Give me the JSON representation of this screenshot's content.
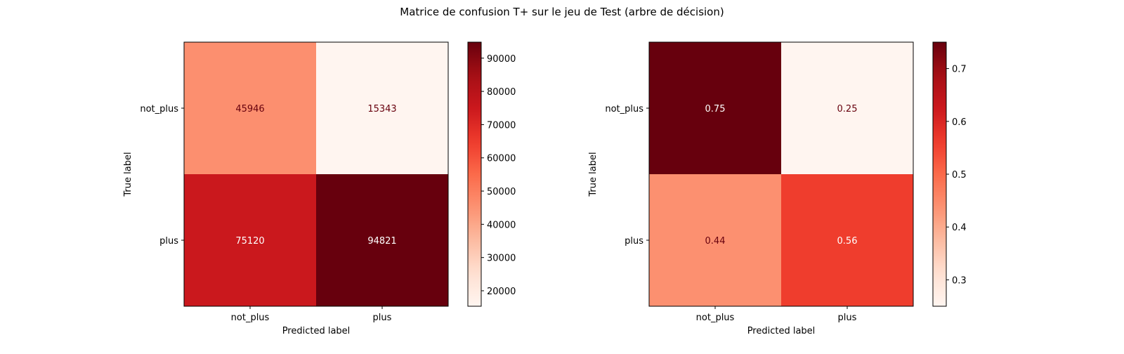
{
  "figure": {
    "suptitle": "Matrice de confusion T+ sur le jeu de Test (arbre de décision)"
  },
  "chart_data": [
    {
      "type": "heatmap",
      "colormap": "Reds",
      "xlabel": "Predicted label",
      "ylabel": "True label",
      "x_categories": [
        "not_plus",
        "plus"
      ],
      "y_categories": [
        "not_plus",
        "plus"
      ],
      "values": [
        [
          45946,
          15343
        ],
        [
          75120,
          94821
        ]
      ],
      "labels": [
        [
          "45946",
          "15343"
        ],
        [
          "75120",
          "94821"
        ]
      ],
      "colorbar": {
        "vmin": 15343,
        "vmax": 94821,
        "ticks": [
          20000,
          30000,
          40000,
          50000,
          60000,
          70000,
          80000,
          90000
        ],
        "tick_labels": [
          "20000",
          "30000",
          "40000",
          "50000",
          "60000",
          "70000",
          "80000",
          "90000"
        ]
      }
    },
    {
      "type": "heatmap",
      "colormap": "Reds",
      "xlabel": "Predicted label",
      "ylabel": "True label",
      "x_categories": [
        "not_plus",
        "plus"
      ],
      "y_categories": [
        "not_plus",
        "plus"
      ],
      "values": [
        [
          0.75,
          0.25
        ],
        [
          0.44,
          0.56
        ]
      ],
      "labels": [
        [
          "0.75",
          "0.25"
        ],
        [
          "0.44",
          "0.56"
        ]
      ],
      "colorbar": {
        "vmin": 0.25,
        "vmax": 0.75,
        "ticks": [
          0.3,
          0.4,
          0.5,
          0.6,
          0.7
        ],
        "tick_labels": [
          "0.3",
          "0.4",
          "0.5",
          "0.6",
          "0.7"
        ]
      }
    }
  ]
}
